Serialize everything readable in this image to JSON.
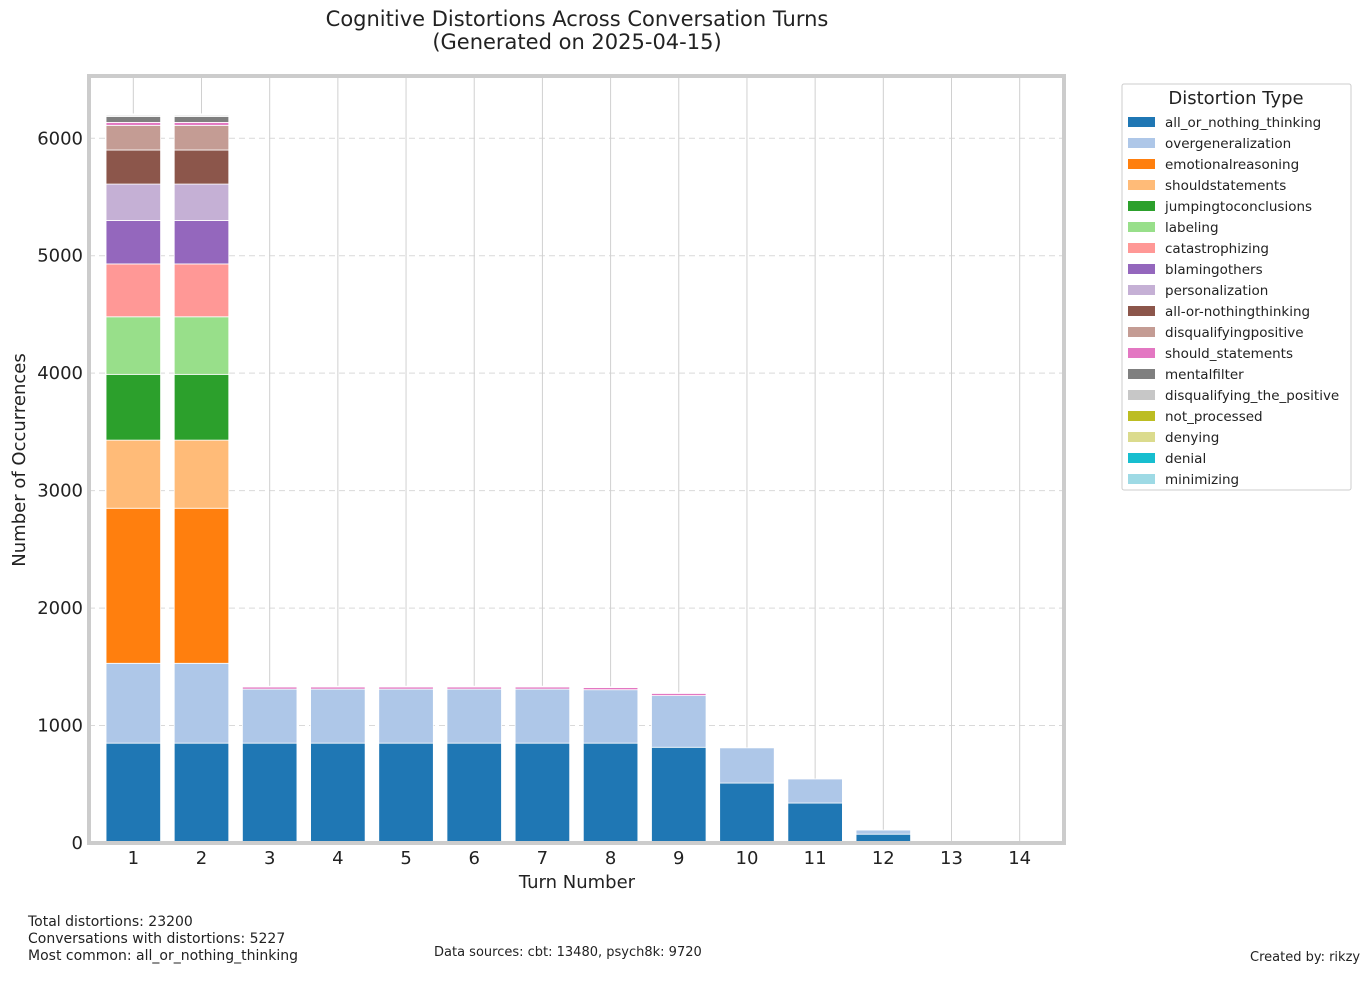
{
  "chart_data": {
    "type": "bar",
    "stacked": true,
    "title": "Cognitive Distortions Across Conversation Turns",
    "subtitle": "(Generated on 2025-04-15)",
    "xlabel": "Turn Number",
    "ylabel": "Number of Occurrences",
    "ylim": [
      0,
      6530
    ],
    "yticks": [
      0,
      1000,
      2000,
      3000,
      4000,
      5000,
      6000
    ],
    "grid": true,
    "legend_title": "Distortion Type",
    "legend_position": "outside-right",
    "categories": [
      "1",
      "2",
      "3",
      "4",
      "5",
      "6",
      "7",
      "8",
      "9",
      "10",
      "11",
      "12",
      "13",
      "14"
    ],
    "series": [
      {
        "name": "all_or_nothing_thinking",
        "color": "#1f77b4",
        "values": [
          850,
          850,
          850,
          850,
          850,
          850,
          850,
          850,
          815,
          510,
          340,
          75,
          0,
          0
        ]
      },
      {
        "name": "overgeneralization",
        "color": "#aec7e8",
        "values": [
          680,
          680,
          460,
          460,
          460,
          460,
          460,
          455,
          440,
          300,
          205,
          35,
          0,
          0
        ]
      },
      {
        "name": "emotionalreasoning",
        "color": "#ff7f0e",
        "values": [
          1320,
          1320,
          0,
          0,
          0,
          0,
          0,
          0,
          0,
          0,
          0,
          0,
          0,
          0
        ]
      },
      {
        "name": "shouldstatements",
        "color": "#ffbb78",
        "values": [
          580,
          580,
          0,
          0,
          0,
          0,
          0,
          0,
          0,
          0,
          0,
          0,
          0,
          0
        ]
      },
      {
        "name": "jumpingtoconclusions",
        "color": "#2ca02c",
        "values": [
          560,
          560,
          0,
          0,
          0,
          0,
          0,
          0,
          0,
          0,
          0,
          0,
          0,
          0
        ]
      },
      {
        "name": "labeling",
        "color": "#98df8a",
        "values": [
          490,
          490,
          0,
          0,
          0,
          0,
          0,
          0,
          0,
          0,
          0,
          0,
          0,
          0
        ]
      },
      {
        "name": "catastrophizing",
        "color": "#ff9896",
        "values": [
          450,
          450,
          0,
          0,
          0,
          0,
          0,
          0,
          0,
          0,
          0,
          0,
          0,
          0
        ]
      },
      {
        "name": "blamingothers",
        "color": "#9467bd",
        "values": [
          370,
          370,
          0,
          0,
          0,
          0,
          0,
          0,
          0,
          0,
          0,
          0,
          0,
          0
        ]
      },
      {
        "name": "personalization",
        "color": "#c5b0d5",
        "values": [
          310,
          310,
          0,
          0,
          0,
          0,
          0,
          0,
          0,
          0,
          0,
          0,
          0,
          0
        ]
      },
      {
        "name": "all-or-nothingthinking",
        "color": "#8c564b",
        "values": [
          290,
          290,
          0,
          0,
          0,
          0,
          0,
          0,
          0,
          0,
          0,
          0,
          0,
          0
        ]
      },
      {
        "name": "disqualifyingpositive",
        "color": "#c49c94",
        "values": [
          210,
          210,
          0,
          0,
          0,
          0,
          0,
          0,
          0,
          0,
          0,
          0,
          0,
          0
        ]
      },
      {
        "name": "should_statements",
        "color": "#e377c2",
        "values": [
          25,
          25,
          20,
          20,
          20,
          20,
          20,
          20,
          20,
          0,
          0,
          0,
          0,
          0
        ]
      },
      {
        "name": "mentalfilter",
        "color": "#7f7f7f",
        "values": [
          50,
          50,
          0,
          0,
          0,
          0,
          0,
          0,
          0,
          0,
          0,
          0,
          0,
          0
        ]
      },
      {
        "name": "disqualifying_the_positive",
        "color": "#c7c7c7",
        "values": [
          15,
          15,
          5,
          5,
          5,
          5,
          5,
          5,
          5,
          0,
          0,
          0,
          0,
          0
        ]
      },
      {
        "name": "not_processed",
        "color": "#bcbd22",
        "values": [
          2,
          2,
          0,
          0,
          0,
          0,
          0,
          0,
          0,
          0,
          0,
          0,
          0,
          0
        ]
      },
      {
        "name": "denying",
        "color": "#dbdb8d",
        "values": [
          2,
          2,
          0,
          0,
          0,
          0,
          0,
          0,
          0,
          0,
          0,
          0,
          0,
          0
        ]
      },
      {
        "name": "denial",
        "color": "#17becf",
        "values": [
          2,
          2,
          0,
          0,
          0,
          0,
          0,
          0,
          0,
          0,
          0,
          0,
          0,
          0
        ]
      },
      {
        "name": "minimizing",
        "color": "#9edae5",
        "values": [
          2,
          2,
          0,
          0,
          0,
          0,
          0,
          0,
          0,
          0,
          0,
          0,
          0,
          0
        ]
      }
    ]
  },
  "footer": {
    "total": "Total distortions: 23200",
    "conversations": "Conversations with distortions: 5227",
    "most_common": "Most common: all_or_nothing_thinking",
    "sources": "Data sources: cbt: 13480, psych8k: 9720",
    "created_by": "Created by: rikzy"
  }
}
